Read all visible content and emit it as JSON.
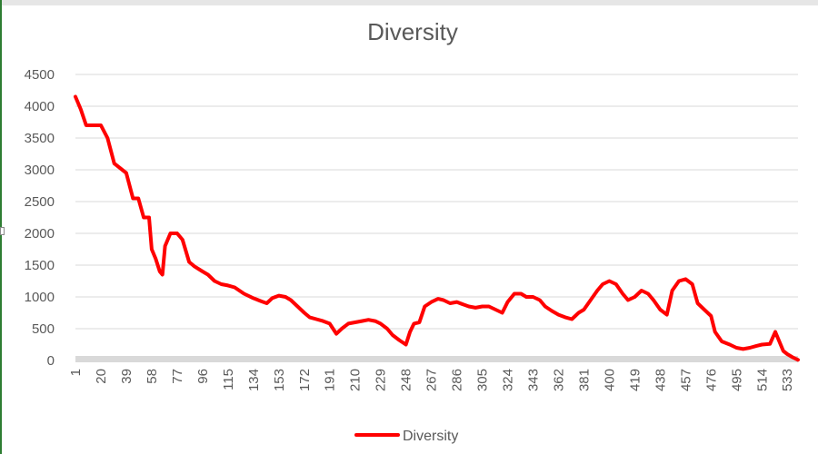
{
  "chart_data": {
    "type": "line",
    "title": "Diversity",
    "xlabel": "",
    "ylabel": "",
    "ylim": [
      0,
      4500
    ],
    "yticks": [
      0,
      500,
      1000,
      1500,
      2000,
      2500,
      3000,
      3500,
      4000,
      4500
    ],
    "grid": true,
    "legend": "bottom",
    "colors": {
      "series": "#ff0000",
      "grid": "#d9d9d9",
      "axis": "#d9d9d9"
    },
    "x_tick_labels": [
      "1",
      "20",
      "39",
      "58",
      "77",
      "96",
      "115",
      "134",
      "153",
      "172",
      "191",
      "210",
      "229",
      "248",
      "267",
      "286",
      "305",
      "324",
      "343",
      "362",
      "381",
      "400",
      "419",
      "438",
      "457",
      "476",
      "495",
      "514",
      "533"
    ],
    "x": [
      1,
      5,
      9,
      20,
      25,
      30,
      39,
      44,
      48,
      52,
      56,
      58,
      61,
      64,
      66,
      68,
      72,
      77,
      81,
      86,
      90,
      96,
      100,
      105,
      110,
      115,
      120,
      127,
      134,
      140,
      144,
      148,
      153,
      158,
      162,
      167,
      172,
      176,
      181,
      186,
      191,
      196,
      200,
      205,
      210,
      215,
      220,
      225,
      229,
      234,
      238,
      243,
      248,
      251,
      254,
      258,
      262,
      267,
      272,
      276,
      281,
      286,
      291,
      295,
      300,
      305,
      310,
      315,
      320,
      324,
      329,
      334,
      338,
      343,
      348,
      352,
      357,
      362,
      367,
      372,
      377,
      381,
      386,
      391,
      395,
      400,
      405,
      410,
      414,
      419,
      424,
      429,
      433,
      438,
      443,
      447,
      452,
      457,
      462,
      466,
      471,
      476,
      479,
      484,
      490,
      495,
      500,
      505,
      510,
      514,
      520,
      524,
      527,
      530,
      533,
      537,
      541
    ],
    "series": [
      {
        "name": "Diversity",
        "values": [
          4150,
          3950,
          3700,
          3700,
          3500,
          3100,
          2950,
          2550,
          2550,
          2250,
          2250,
          1750,
          1600,
          1400,
          1350,
          1800,
          2000,
          2000,
          1900,
          1550,
          1480,
          1400,
          1350,
          1250,
          1200,
          1180,
          1150,
          1050,
          980,
          930,
          900,
          980,
          1020,
          1000,
          950,
          850,
          750,
          680,
          650,
          620,
          580,
          420,
          500,
          580,
          600,
          620,
          640,
          620,
          580,
          500,
          400,
          320,
          250,
          450,
          580,
          600,
          850,
          920,
          970,
          950,
          900,
          920,
          880,
          850,
          830,
          850,
          850,
          800,
          750,
          920,
          1050,
          1050,
          1000,
          1000,
          950,
          850,
          780,
          720,
          680,
          650,
          750,
          800,
          950,
          1100,
          1200,
          1250,
          1200,
          1050,
          950,
          1000,
          1100,
          1050,
          950,
          800,
          720,
          1100,
          1250,
          1280,
          1200,
          900,
          800,
          700,
          450,
          300,
          250,
          200,
          180,
          200,
          230,
          250,
          260,
          450,
          300,
          150,
          100,
          50,
          10
        ]
      }
    ]
  }
}
